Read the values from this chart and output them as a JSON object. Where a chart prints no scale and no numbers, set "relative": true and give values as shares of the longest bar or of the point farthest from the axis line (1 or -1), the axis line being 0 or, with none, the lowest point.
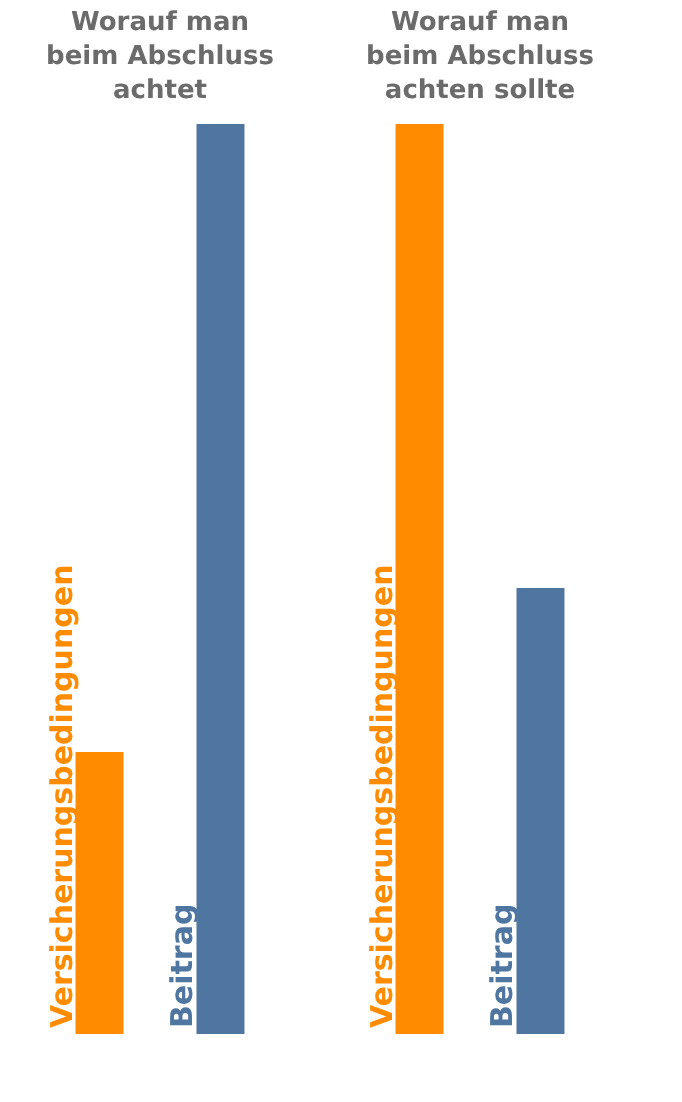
{
  "chart_data": [
    {
      "type": "bar",
      "title": "Worauf man\nbeim Abschluss\nachtet",
      "categories": [
        "Versicherungsbedingungen",
        "Beitrag"
      ],
      "values": [
        0.31,
        1
      ],
      "colors": [
        "#ff8c00",
        "#4f76a0"
      ],
      "relative": true
    },
    {
      "type": "bar",
      "title": "Worauf man\nbeim Abschluss\nachten sollte",
      "categories": [
        "Versicherungsbedingungen",
        "Beitrag"
      ],
      "values": [
        1,
        0.49
      ],
      "colors": [
        "#ff8c00",
        "#4f76a0"
      ],
      "relative": true
    }
  ]
}
